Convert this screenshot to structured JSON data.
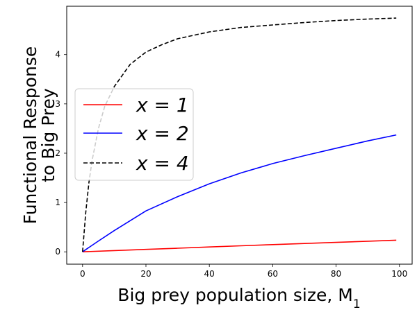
{
  "chart_data": {
    "type": "line",
    "xlabel": "Big prey population size, M",
    "xlabel_subscript": "1",
    "ylabel_lines": [
      "Functional Response",
      "to Big Prey"
    ],
    "xlim": [
      -5,
      104
    ],
    "ylim": [
      -0.25,
      4.98
    ],
    "x_ticks": [
      0,
      20,
      40,
      60,
      80,
      100
    ],
    "y_ticks": [
      0,
      1,
      2,
      3,
      4
    ],
    "grid": false,
    "legend_position": "center-left",
    "series": [
      {
        "name": "x = 1",
        "color": "#ff0000",
        "dash": "solid",
        "x": [
          0,
          10,
          20,
          30,
          40,
          50,
          60,
          70,
          80,
          90,
          99
        ],
        "y": [
          0,
          0.025,
          0.05,
          0.074,
          0.098,
          0.122,
          0.146,
          0.169,
          0.192,
          0.215,
          0.236
        ]
      },
      {
        "name": "x = 2",
        "color": "#0000ff",
        "dash": "solid",
        "x": [
          0,
          5,
          10,
          20,
          30,
          40,
          50,
          60,
          70,
          80,
          90,
          99
        ],
        "y": [
          0,
          0.22,
          0.43,
          0.83,
          1.12,
          1.38,
          1.6,
          1.79,
          1.95,
          2.1,
          2.25,
          2.37
        ]
      },
      {
        "name": "x = 4",
        "color": "#000000",
        "dash": "dashed",
        "x": [
          0,
          1,
          2,
          3,
          5,
          7,
          10,
          15,
          20,
          25,
          30,
          40,
          50,
          60,
          70,
          80,
          90,
          99
        ],
        "y": [
          0,
          0.8,
          1.4,
          1.85,
          2.5,
          2.95,
          3.35,
          3.8,
          4.05,
          4.2,
          4.32,
          4.46,
          4.55,
          4.6,
          4.65,
          4.69,
          4.72,
          4.74
        ]
      }
    ]
  }
}
